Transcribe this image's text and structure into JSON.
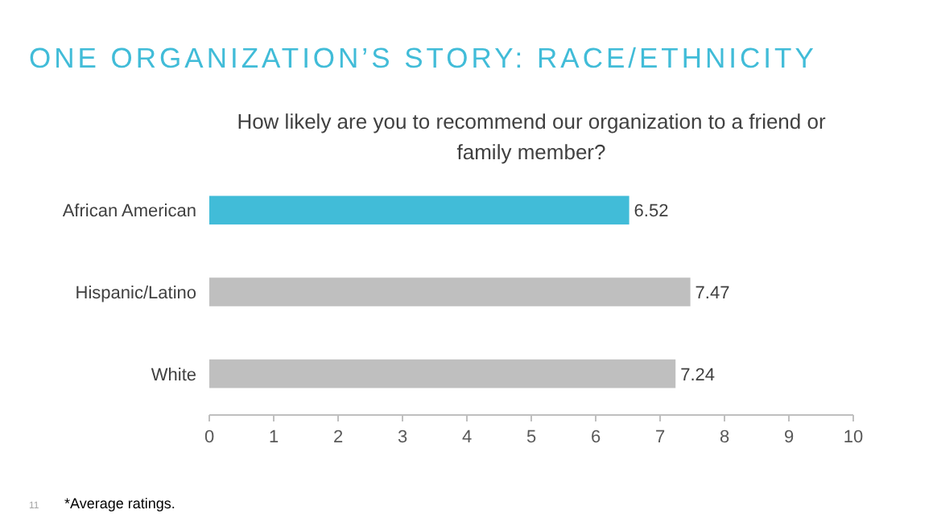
{
  "chart_data": {
    "type": "bar",
    "orientation": "horizontal",
    "title": "ONE ORGANIZATION’S STORY: RACE/ETHNICITY",
    "subtitle": "How likely are you to recommend our organization to a friend or family member?",
    "categories": [
      "African American",
      "Hispanic/Latino",
      "White"
    ],
    "values": [
      6.52,
      7.47,
      7.24
    ],
    "colors": [
      "#41bcd8",
      "#bfbfbf",
      "#bfbfbf"
    ],
    "data_labels": true,
    "xlim": [
      0,
      10
    ],
    "xticks": [
      0,
      1,
      2,
      3,
      4,
      5,
      6,
      7,
      8,
      9,
      10
    ],
    "grid": false,
    "annotations": [
      "*Average ratings.",
      "11"
    ]
  }
}
